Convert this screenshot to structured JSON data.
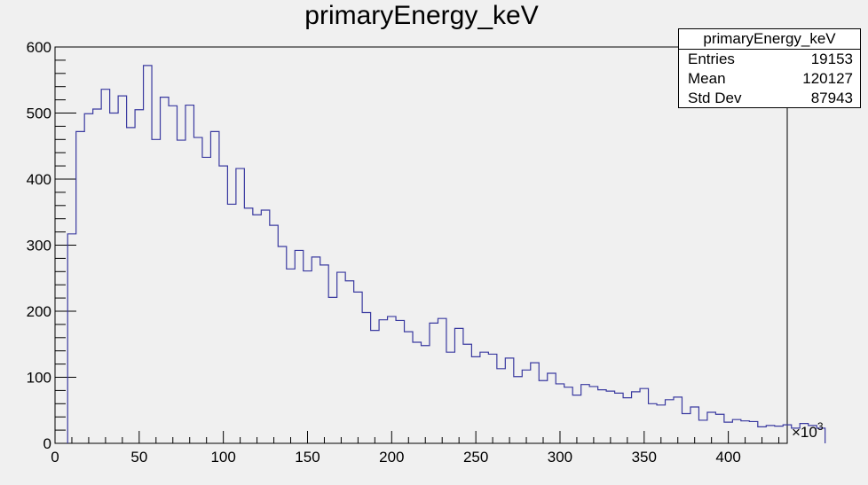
{
  "chart_data": {
    "type": "histogram",
    "title": "primaryEnergy_keV",
    "xlabel": "",
    "ylabel": "",
    "x_exponent_label": "×10",
    "x_exponent_power": "3",
    "xlim": [
      0,
      435
    ],
    "ylim": [
      0,
      600
    ],
    "bin_width": 5,
    "x_ticks": [
      "0",
      "50",
      "100",
      "150",
      "200",
      "250",
      "300",
      "350",
      "400"
    ],
    "y_ticks": [
      "0",
      "100",
      "200",
      "300",
      "400",
      "500",
      "600"
    ],
    "bins_start": 7.5,
    "counts": [
      317,
      472,
      499,
      506,
      536,
      500,
      526,
      478,
      505,
      572,
      460,
      524,
      511,
      459,
      512,
      463,
      433,
      472,
      420,
      362,
      416,
      356,
      346,
      353,
      330,
      298,
      264,
      292,
      261,
      282,
      270,
      221,
      259,
      246,
      229,
      198,
      171,
      187,
      192,
      186,
      169,
      153,
      148,
      182,
      189,
      138,
      174,
      150,
      131,
      138,
      135,
      113,
      129,
      101,
      111,
      122,
      95,
      106,
      90,
      85,
      73,
      89,
      86,
      81,
      79,
      76,
      69,
      78,
      83,
      60,
      58,
      66,
      70,
      45,
      55,
      35,
      47,
      44,
      32,
      36,
      34,
      33,
      25,
      27,
      26,
      28,
      23,
      30,
      27,
      23
    ],
    "line_color": "#3a3aa0",
    "stats": {
      "title": "primaryEnergy_keV",
      "rows": [
        {
          "label": "Entries",
          "value": "19153"
        },
        {
          "label": "Mean",
          "value": "120127"
        },
        {
          "label": "Std Dev",
          "value": "87943"
        }
      ]
    }
  }
}
